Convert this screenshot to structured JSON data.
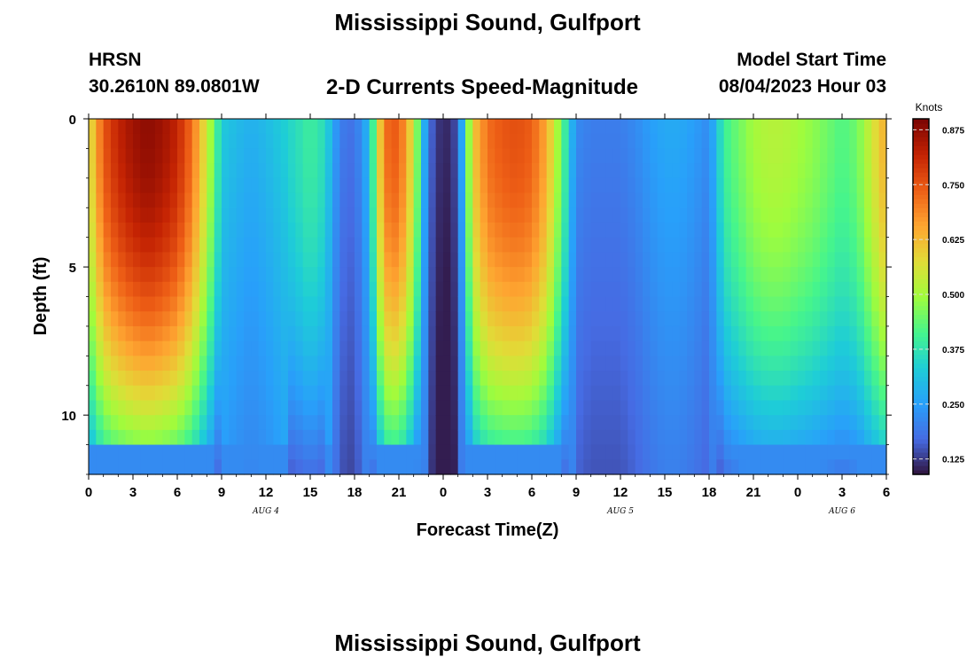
{
  "header": {
    "title_top": "Mississippi Sound, Gulfport",
    "station": "HRSN",
    "coords": "30.2610N  89.0801W",
    "subtitle": "2-D Currents Speed-Magnitude",
    "model_label": "Model Start Time",
    "model_time": "08/04/2023 Hour 03",
    "title_bottom": "Mississippi Sound, Gulfport"
  },
  "chart_data": {
    "type": "heatmap",
    "title": "2-D Currents Speed-Magnitude",
    "xlabel": "Forecast Time(Z)",
    "ylabel": "Depth (ft)",
    "colorbar_label": "Knots",
    "x_tick_labels": [
      "0",
      "3",
      "6",
      "9",
      "12",
      "15",
      "18",
      "21",
      "0",
      "3",
      "6",
      "9",
      "12",
      "15",
      "18",
      "21",
      "0",
      "3",
      "6"
    ],
    "x_hours": [
      0,
      3,
      6,
      9,
      12,
      15,
      18,
      21,
      24,
      27,
      30,
      33,
      36,
      39,
      42,
      45,
      48,
      51,
      54
    ],
    "xlim": [
      0,
      54
    ],
    "date_labels": [
      {
        "label": "AUG 4",
        "hour": 12
      },
      {
        "label": "AUG 5",
        "hour": 36
      },
      {
        "label": "AUG 6",
        "hour": 51
      }
    ],
    "y_tick_labels": [
      "0",
      "5",
      "10"
    ],
    "y_ticks": [
      0,
      5,
      10
    ],
    "ylim": [
      0,
      12
    ],
    "y_inverted": true,
    "colorbar_ticks": [
      0.125,
      0.25,
      0.375,
      0.5,
      0.625,
      0.75,
      0.875
    ],
    "colorbar_tick_labels": [
      "0.125",
      "0.250",
      "0.375",
      "0.500",
      "0.625",
      "0.750",
      "0.875"
    ],
    "colorbar_range": [
      0.09,
      0.9
    ],
    "colormap": "turbo",
    "surface_speed_by_hour": [
      [
        0,
        0.55
      ],
      [
        1,
        0.75
      ],
      [
        2,
        0.82
      ],
      [
        3,
        0.86
      ],
      [
        4,
        0.88
      ],
      [
        5,
        0.86
      ],
      [
        6,
        0.82
      ],
      [
        7,
        0.72
      ],
      [
        8,
        0.55
      ],
      [
        9,
        0.33
      ],
      [
        10,
        0.3
      ],
      [
        11,
        0.28
      ],
      [
        12,
        0.3
      ],
      [
        13,
        0.33
      ],
      [
        14,
        0.36
      ],
      [
        15,
        0.4
      ],
      [
        16,
        0.36
      ],
      [
        17,
        0.2
      ],
      [
        18,
        0.18
      ],
      [
        19,
        0.3
      ],
      [
        20,
        0.72
      ],
      [
        21,
        0.75
      ],
      [
        22,
        0.55
      ],
      [
        23,
        0.18
      ],
      [
        24,
        0.1
      ],
      [
        25,
        0.15
      ],
      [
        26,
        0.6
      ],
      [
        27,
        0.72
      ],
      [
        28,
        0.75
      ],
      [
        29,
        0.76
      ],
      [
        30,
        0.74
      ],
      [
        31,
        0.65
      ],
      [
        32,
        0.45
      ],
      [
        33,
        0.22
      ],
      [
        34,
        0.2
      ],
      [
        35,
        0.2
      ],
      [
        36,
        0.2
      ],
      [
        37,
        0.22
      ],
      [
        38,
        0.25
      ],
      [
        39,
        0.27
      ],
      [
        40,
        0.27
      ],
      [
        41,
        0.25
      ],
      [
        42,
        0.22
      ],
      [
        43,
        0.4
      ],
      [
        44,
        0.45
      ],
      [
        45,
        0.5
      ],
      [
        46,
        0.52
      ],
      [
        47,
        0.52
      ],
      [
        48,
        0.5
      ],
      [
        49,
        0.48
      ],
      [
        50,
        0.45
      ],
      [
        51,
        0.42
      ],
      [
        52,
        0.45
      ],
      [
        53,
        0.55
      ],
      [
        54,
        0.65
      ]
    ],
    "grid": false
  }
}
